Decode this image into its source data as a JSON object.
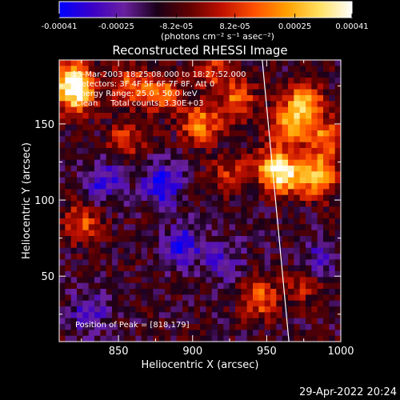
{
  "colorbar": {
    "tick_labels": [
      "-0.00041",
      "-0.00025",
      "-8.2e-05",
      "8.2e-05",
      "0.00025",
      "0.00041"
    ],
    "tick_values": [
      -0.00041,
      -0.00025,
      -8.2e-05,
      8.2e-05,
      0.00025,
      0.00041
    ],
    "unit_label": "(photons cm⁻² s⁻¹ asec⁻²)",
    "range": [
      -0.00041,
      0.00041
    ],
    "colors": [
      "#0000ff",
      "#3a00c8",
      "#6a20a0",
      "#1a001a",
      "#600000",
      "#c01000",
      "#ff5000",
      "#ffa000",
      "#ffe060",
      "#ffffff"
    ]
  },
  "chart_data": {
    "type": "heatmap",
    "title": "Reconstructed RHESSI Image",
    "xlabel": "Heliocentric X (arcsec)",
    "ylabel": "Heliocentric Y (arcsec)",
    "xlim": [
      810,
      1000
    ],
    "ylim": [
      7,
      192
    ],
    "x_ticks": [
      850,
      900,
      950,
      1000
    ],
    "y_ticks": [
      50,
      100,
      150
    ],
    "limb_line": [
      [
        947,
        192
      ],
      [
        965,
        7
      ]
    ],
    "hotspots": [
      {
        "x": 818,
        "y": 179,
        "amp": 0.0004
      },
      {
        "x": 822,
        "y": 168,
        "amp": 0.00033
      },
      {
        "x": 858,
        "y": 176,
        "amp": 0.00025
      },
      {
        "x": 880,
        "y": 170,
        "amp": 0.00028
      },
      {
        "x": 905,
        "y": 150,
        "amp": 0.00032
      },
      {
        "x": 930,
        "y": 165,
        "amp": 0.00026
      },
      {
        "x": 955,
        "y": 122,
        "amp": 0.00034
      },
      {
        "x": 963,
        "y": 115,
        "amp": 0.0003
      },
      {
        "x": 975,
        "y": 163,
        "amp": 0.00041
      },
      {
        "x": 985,
        "y": 115,
        "amp": 0.0004
      },
      {
        "x": 945,
        "y": 35,
        "amp": 0.00026
      },
      {
        "x": 825,
        "y": 85,
        "amp": 0.00024
      },
      {
        "x": 855,
        "y": 140,
        "amp": 0.0002
      },
      {
        "x": 925,
        "y": 118,
        "amp": 0.00018
      },
      {
        "x": 965,
        "y": 148,
        "amp": 0.00028
      },
      {
        "x": 990,
        "y": 140,
        "amp": 0.0003
      },
      {
        "x": 975,
        "y": 45,
        "amp": 0.00016
      },
      {
        "x": 915,
        "y": 185,
        "amp": 0.0002
      }
    ],
    "coldspots": [
      {
        "x": 880,
        "y": 110,
        "amp": -0.0003
      },
      {
        "x": 892,
        "y": 70,
        "amp": -0.00026
      },
      {
        "x": 840,
        "y": 112,
        "amp": -0.00022
      },
      {
        "x": 830,
        "y": 25,
        "amp": -0.00018
      },
      {
        "x": 920,
        "y": 60,
        "amp": -0.00016
      },
      {
        "x": 985,
        "y": 60,
        "amp": -0.00016
      }
    ]
  },
  "annotations": {
    "time_range": "15-Mar-2003 18:25:08.000 to 18:27:52.000",
    "detectors": "Detectors: 3F 4F 5F 6F 7F 8F, Att 0",
    "energy": "Energy Range: 25.0 - 50.0 keV",
    "method": "Clean     Total counts: 3.30E+03",
    "peak": "Position of Peak = [818,179]"
  },
  "footer": {
    "date": "29-Apr-2022 20:24"
  }
}
